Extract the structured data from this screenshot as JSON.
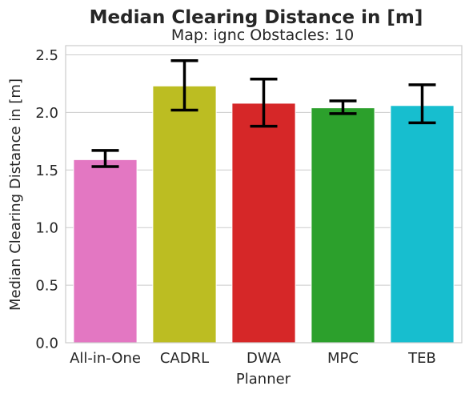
{
  "chart_data": {
    "type": "bar",
    "title": "Median Clearing Distance in [m]",
    "subtitle": "Map: ignc Obstacles: 10",
    "xlabel": "Planner",
    "ylabel": "Median Clearing Distance in [m]",
    "ylim": [
      0,
      2.58
    ],
    "yticks": [
      "0.0",
      "0.5",
      "1.0",
      "1.5",
      "2.0",
      "2.5"
    ],
    "ytick_values": [
      0,
      0.5,
      1.0,
      1.5,
      2.0,
      2.5
    ],
    "categories": [
      "All-in-One",
      "CADRL",
      "DWA",
      "MPC",
      "TEB"
    ],
    "values": [
      1.59,
      2.23,
      2.08,
      2.04,
      2.06
    ],
    "error_low": [
      1.53,
      2.02,
      1.88,
      1.99,
      1.91
    ],
    "error_high": [
      1.67,
      2.45,
      2.29,
      2.1,
      2.24
    ],
    "colors": [
      "#e377c2",
      "#bcbd22",
      "#d62728",
      "#2ca02c",
      "#17becf"
    ],
    "grid": true
  }
}
